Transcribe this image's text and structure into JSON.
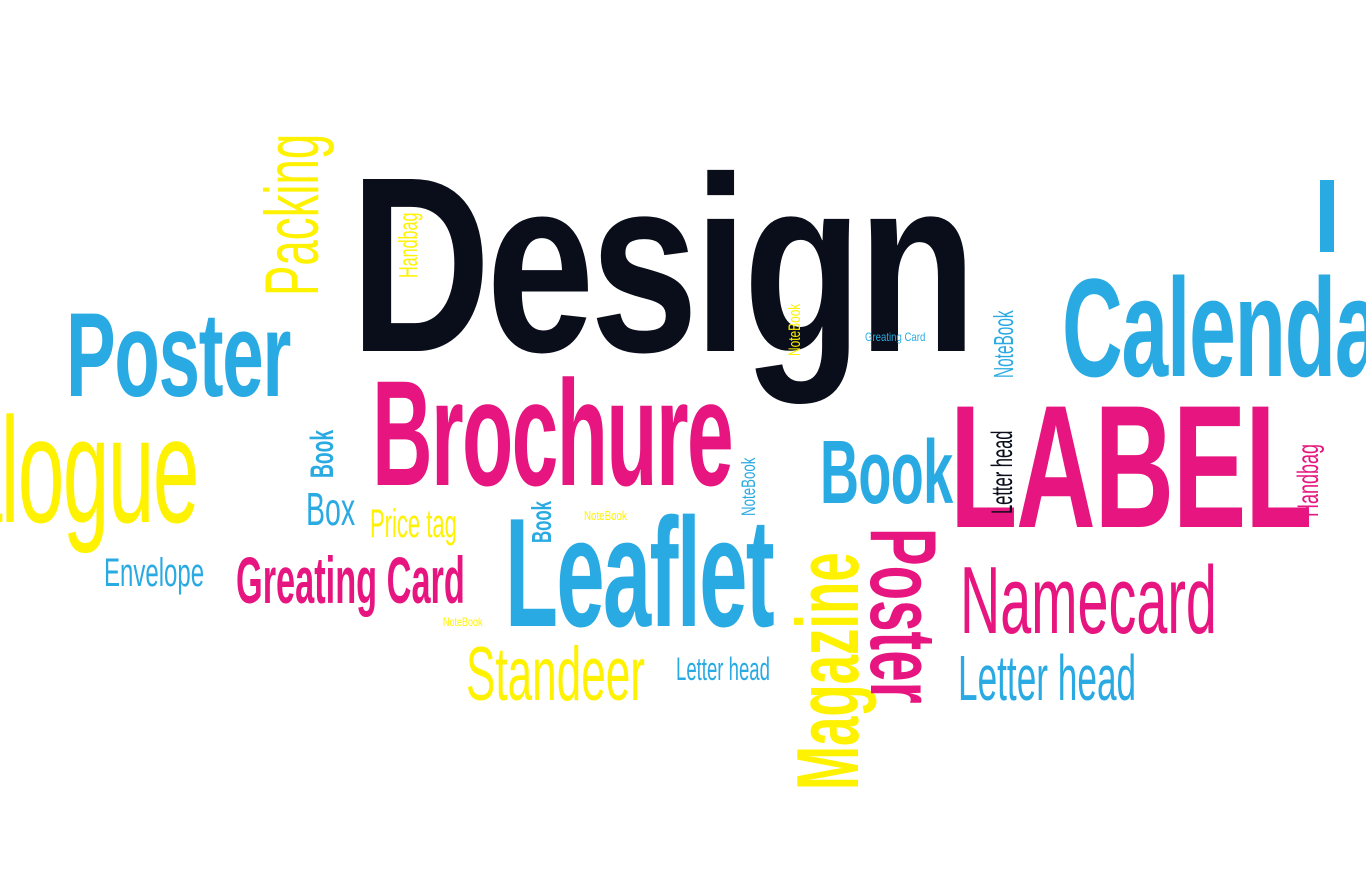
{
  "palette": {
    "black": "#0a0d1a",
    "cyan": "#29aae2",
    "magenta": "#e6157f",
    "yellow": "#fff200"
  },
  "words": [
    {
      "name": "word-design",
      "text": "Design",
      "color": "black"
    },
    {
      "name": "word-brochure",
      "text": "Brochure",
      "color": "magenta"
    },
    {
      "name": "word-label",
      "text": "LABEL",
      "color": "magenta"
    },
    {
      "name": "word-leaflet",
      "text": "Leaflet",
      "color": "cyan"
    },
    {
      "name": "word-calendar",
      "text": "Calendar",
      "color": "cyan"
    },
    {
      "name": "word-poster-left",
      "text": "Poster",
      "color": "cyan"
    },
    {
      "name": "word-catalogue",
      "text": "Catalogue",
      "color": "yellow"
    },
    {
      "name": "word-packing",
      "text": "Packing",
      "color": "yellow"
    },
    {
      "name": "word-magazine",
      "text": "Magazine",
      "color": "yellow"
    },
    {
      "name": "word-poster-vertical",
      "text": "Poster",
      "color": "magenta"
    },
    {
      "name": "word-namecard",
      "text": "Namecard",
      "color": "magenta"
    },
    {
      "name": "word-book-large",
      "text": "Book",
      "color": "cyan"
    },
    {
      "name": "word-greeting-card-main",
      "text": "Greating Card",
      "color": "magenta"
    },
    {
      "name": "word-standeer",
      "text": "Standeer",
      "color": "yellow"
    },
    {
      "name": "word-letter-head-large",
      "text": "Letter head",
      "color": "cyan"
    },
    {
      "name": "word-envelope",
      "text": "Envelope",
      "color": "cyan"
    },
    {
      "name": "word-box",
      "text": "Box",
      "color": "cyan"
    },
    {
      "name": "word-price-tag",
      "text": "Price tag",
      "color": "yellow"
    },
    {
      "name": "word-letter-head-mid",
      "text": "Letter head",
      "color": "cyan"
    },
    {
      "name": "word-handbag-left",
      "text": "Handbag",
      "color": "yellow"
    },
    {
      "name": "word-handbag-right",
      "text": "Handbag",
      "color": "magenta"
    },
    {
      "name": "word-notebook-top",
      "text": "NoteBook",
      "color": "yellow"
    },
    {
      "name": "word-notebook-right",
      "text": "NoteBook",
      "color": "cyan"
    },
    {
      "name": "word-notebook-mid",
      "text": "NoteBook",
      "color": "cyan"
    },
    {
      "name": "word-notebook-small",
      "text": "NoteBook",
      "color": "yellow"
    },
    {
      "name": "word-notebook-bottom",
      "text": "NoteBook",
      "color": "yellow"
    },
    {
      "name": "word-book-vertical",
      "text": "Book",
      "color": "cyan"
    },
    {
      "name": "word-book-small",
      "text": "Book",
      "color": "cyan"
    },
    {
      "name": "word-greeting-card-vertical",
      "text": "Greating Card",
      "color": "black"
    },
    {
      "name": "word-letter-head-small",
      "text": "Letter head",
      "color": "cyan"
    },
    {
      "name": "word-accent-bar",
      "text": "",
      "color": "cyan"
    }
  ]
}
